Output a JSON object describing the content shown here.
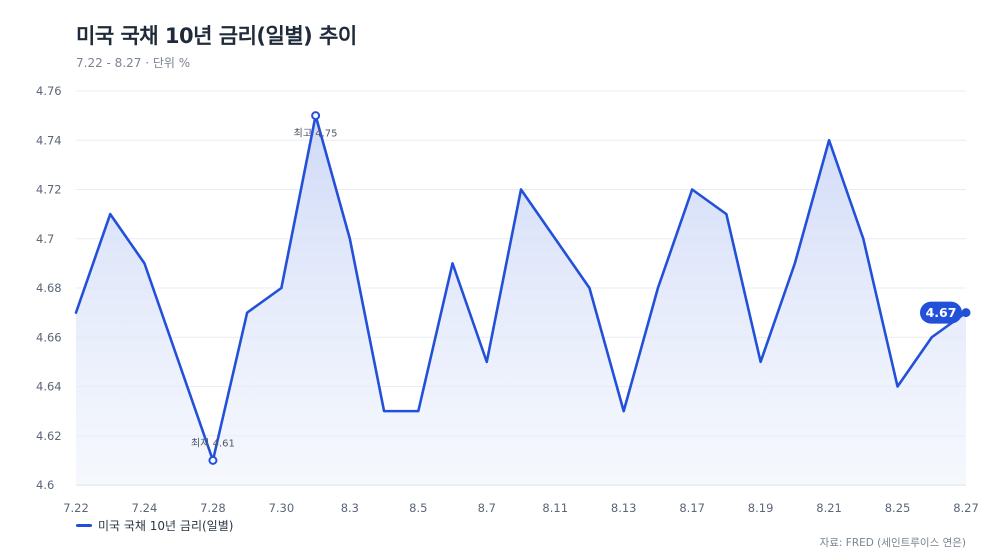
{
  "header": {
    "title": "미국 국채 10년 금리(일별) 추이",
    "subtitle": "7.22 - 8.27 · 단위 %"
  },
  "legend": {
    "label": "미국 국채 10년 금리(일별)"
  },
  "footer": {
    "source": "자료: FRED (세인트루이스 연은)"
  },
  "colors": {
    "line": "#2350d8",
    "fill": "#dfe6fb",
    "grid": "#e9ecf2",
    "tick": "#5c6677"
  },
  "chart_data": {
    "type": "line",
    "title": "미국 국채 10년 금리(일별) 추이",
    "subtitle": "7.22 - 8.27 · 단위 %",
    "xlabel": "",
    "ylabel": "",
    "ylim": [
      4.6,
      4.76
    ],
    "yticks": [
      "4.6",
      "4.62",
      "4.64",
      "4.66",
      "4.68",
      "4.7",
      "4.72",
      "4.74",
      "4.76"
    ],
    "xticks": [
      "7.22",
      "7.24",
      "7.28",
      "7.30",
      "8.3",
      "8.5",
      "8.7",
      "8.11",
      "8.13",
      "8.17",
      "8.19",
      "8.21",
      "8.25",
      "8.27"
    ],
    "grid": true,
    "legend_position": "bottom-left",
    "series": [
      {
        "name": "미국 국채 10년 금리(일별)",
        "values": [
          4.67,
          4.71,
          4.69,
          4.65,
          4.61,
          4.67,
          4.68,
          4.75,
          4.7,
          4.63,
          4.63,
          4.69,
          4.65,
          4.72,
          4.7,
          4.68,
          4.63,
          4.68,
          4.72,
          4.71,
          4.65,
          4.69,
          4.74,
          4.7,
          4.64,
          4.66,
          4.67
        ]
      }
    ],
    "annotations": {
      "max": {
        "text": "최고 4.75",
        "index": 7
      },
      "min": {
        "text": "최저 4.61",
        "index": 4
      },
      "last": {
        "text": "4.67",
        "index": 26
      }
    }
  }
}
